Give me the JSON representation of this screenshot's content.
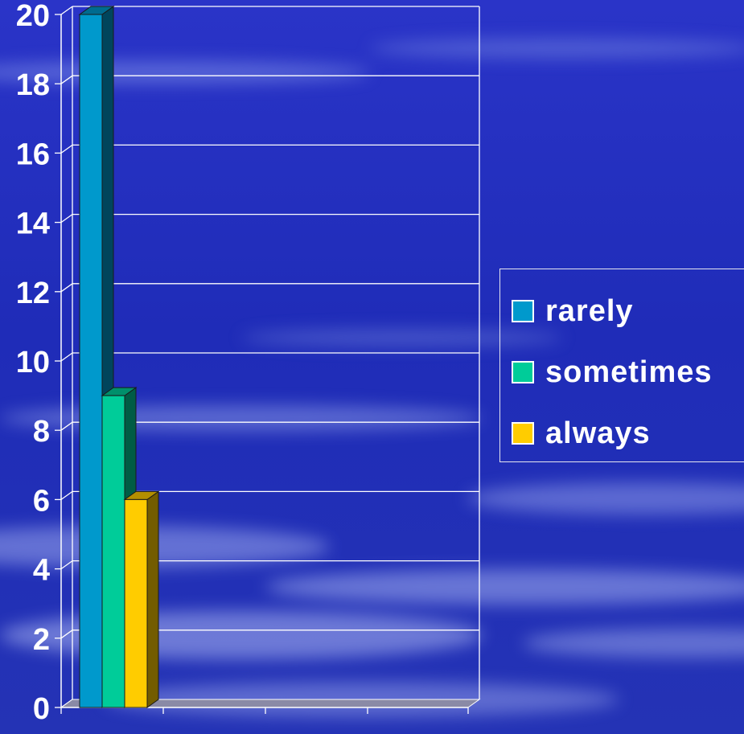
{
  "chart_data": {
    "type": "bar",
    "title": "",
    "xlabel": "",
    "ylabel": "",
    "ylim": [
      0,
      20
    ],
    "yticks": [
      0,
      2,
      4,
      6,
      8,
      10,
      12,
      14,
      16,
      18,
      20
    ],
    "grid": true,
    "legend_position": "right",
    "categories": [
      ""
    ],
    "series": [
      {
        "name": "rarely",
        "values": [
          20
        ],
        "color": "#0099cc"
      },
      {
        "name": "sometimes",
        "values": [
          9
        ],
        "color": "#00cc99"
      },
      {
        "name": "always",
        "values": [
          6
        ],
        "color": "#ffcc00"
      }
    ]
  },
  "legend": {
    "items": [
      {
        "label": "rarely",
        "color": "#0099cc"
      },
      {
        "label": "sometimes",
        "color": "#00cc99"
      },
      {
        "label": "always",
        "color": "#ffcc00"
      }
    ]
  }
}
